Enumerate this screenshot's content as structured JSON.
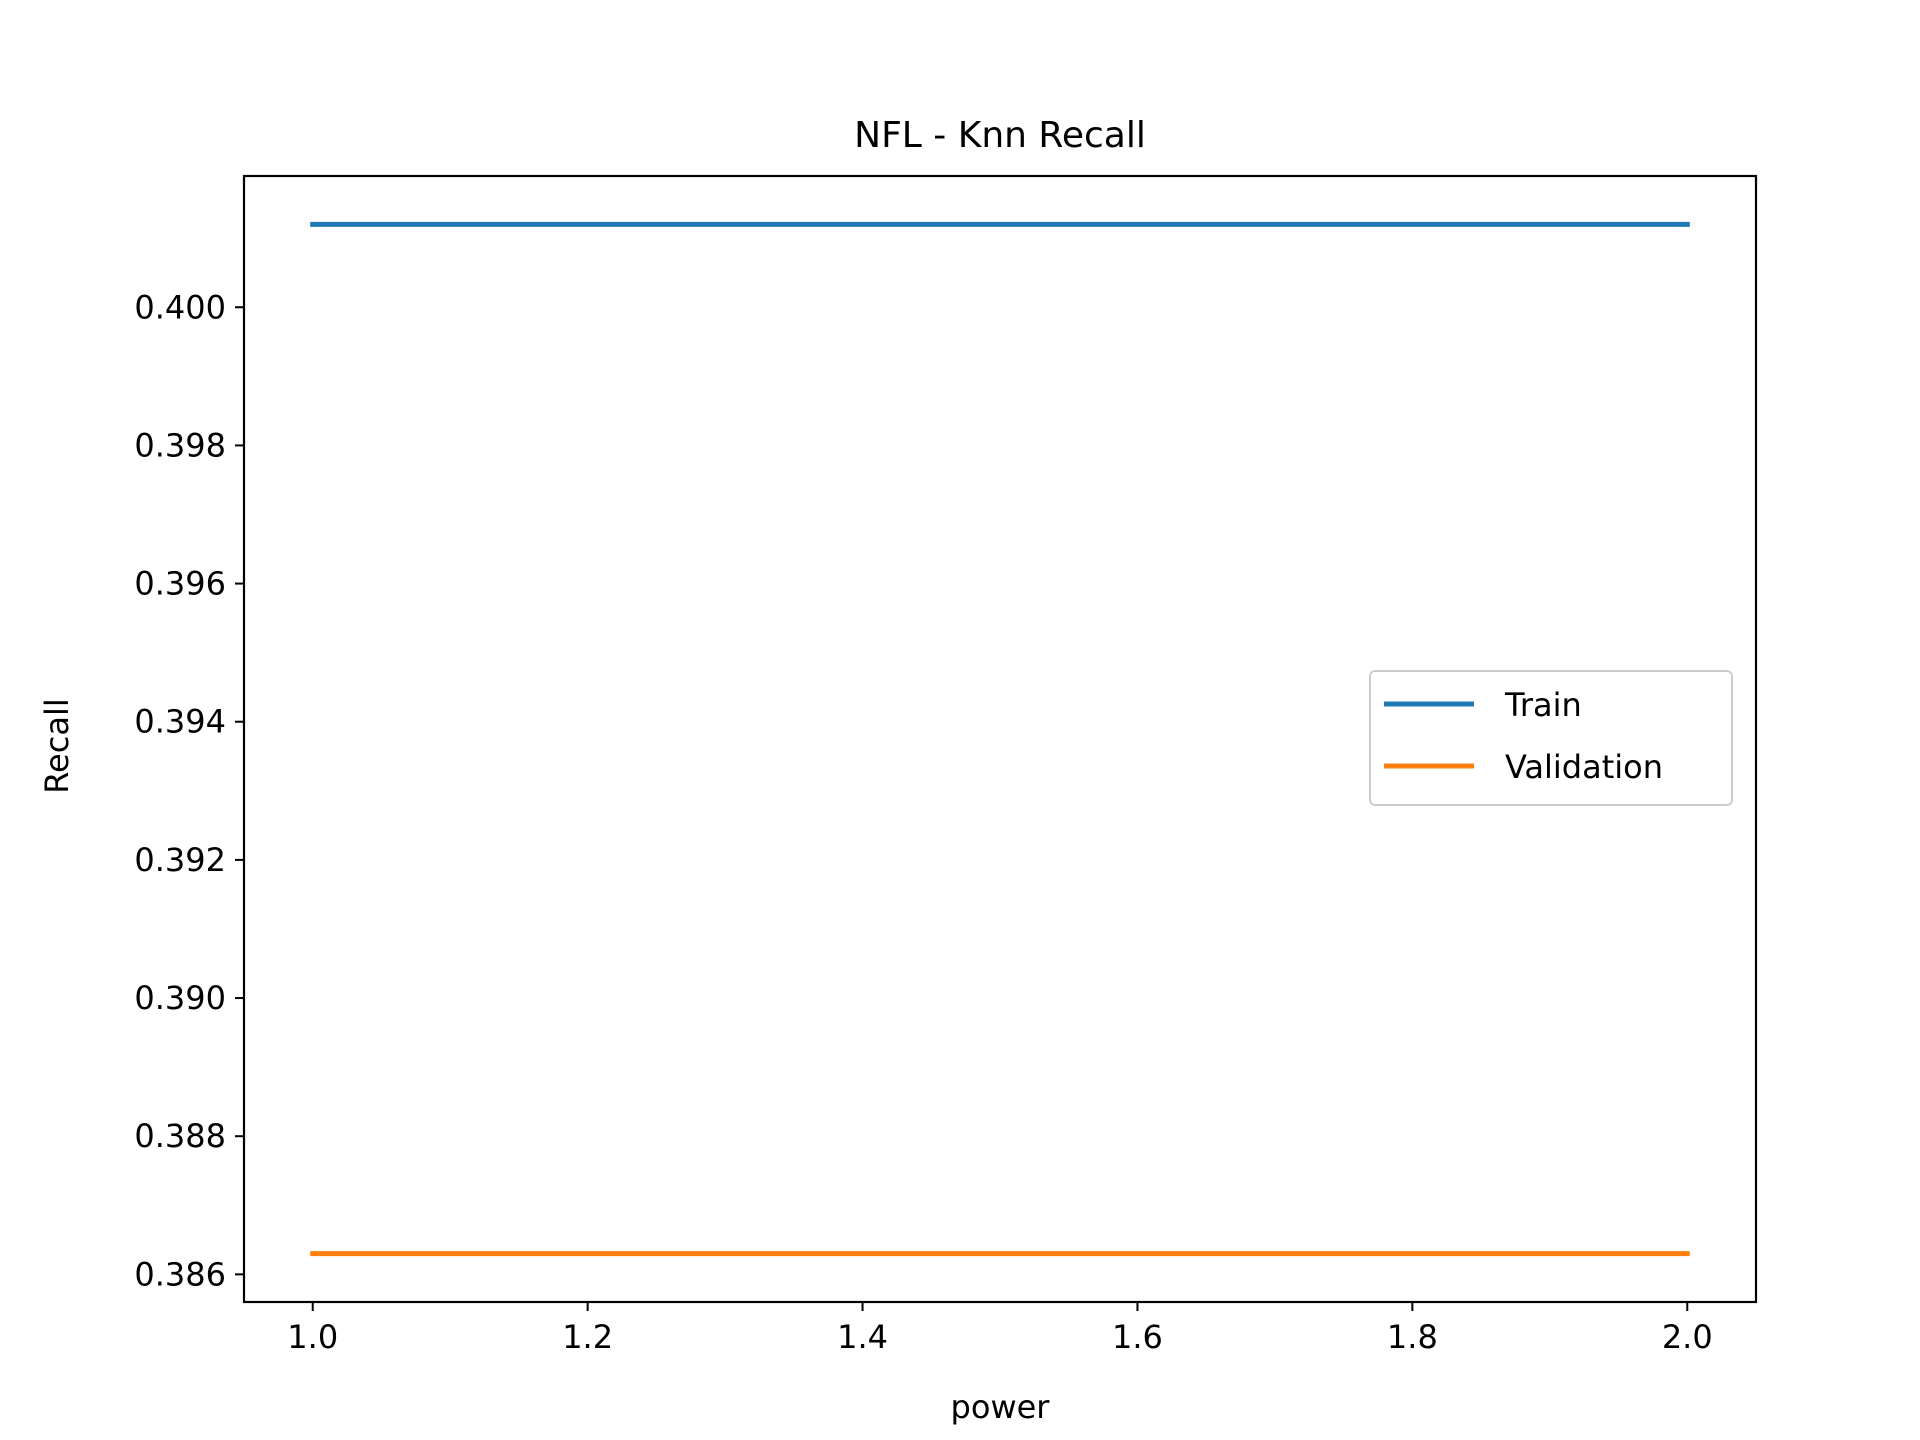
{
  "chart_data": {
    "type": "line",
    "title": "NFL - Knn Recall",
    "xlabel": "power",
    "ylabel": "Recall",
    "x": [
      1.0,
      2.0
    ],
    "series": [
      {
        "name": "Train",
        "color": "#1f77b4",
        "values": [
          0.4012,
          0.4012
        ]
      },
      {
        "name": "Validation",
        "color": "#ff7f0e",
        "values": [
          0.3863,
          0.3863
        ]
      }
    ],
    "xlim": [
      0.95,
      2.05
    ],
    "ylim": [
      0.3856,
      0.4019
    ],
    "xticks": [
      "1.0",
      "1.2",
      "1.4",
      "1.6",
      "1.8",
      "2.0"
    ],
    "yticks": [
      "0.386",
      "0.388",
      "0.390",
      "0.392",
      "0.394",
      "0.396",
      "0.398",
      "0.400"
    ],
    "grid": false,
    "legend": "center-right"
  }
}
